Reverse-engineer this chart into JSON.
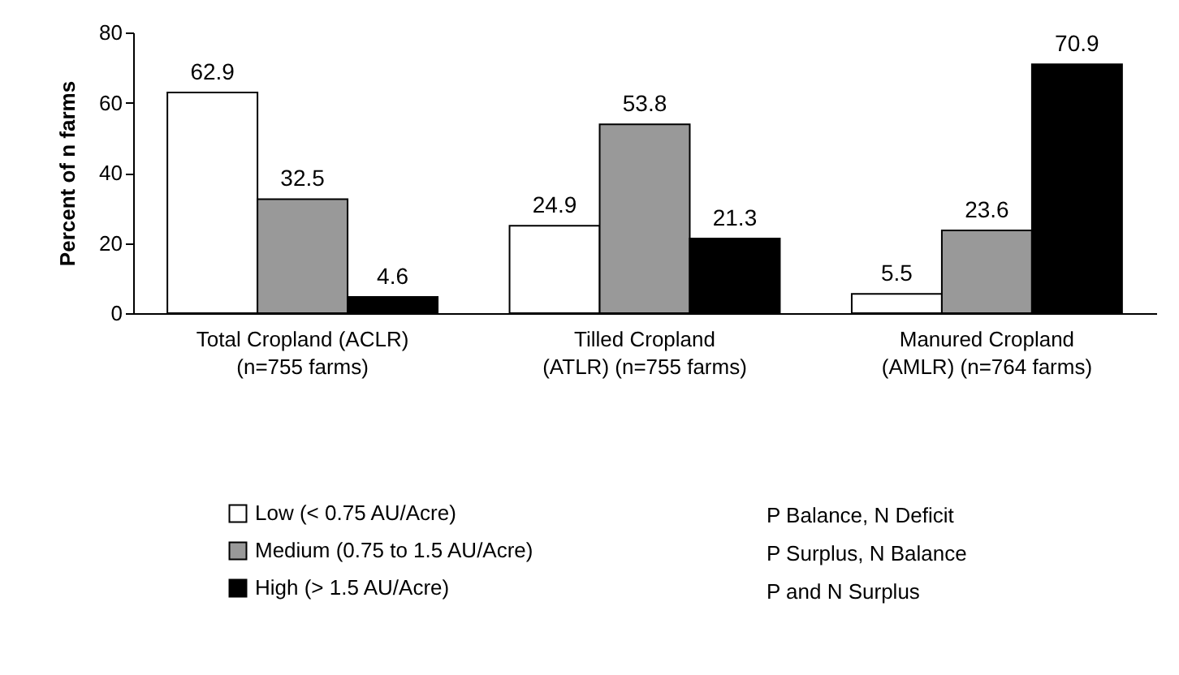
{
  "chart_data": {
    "type": "bar",
    "ylabel": "Percent of n farms",
    "categories": [
      "Total Cropland (ACLR) (n=755 farms)",
      "Tilled Cropland (ATLR) (n=755 farms)",
      "Manured Cropland (AMLR) (n=764 farms)"
    ],
    "series": [
      {
        "name": "Low (< 0.75 AU/Acre)",
        "color": "#ffffff",
        "values": [
          62.9,
          24.9,
          5.5
        ]
      },
      {
        "name": "Medium (0.75 to 1.5 AU/Acre)",
        "color": "#999999",
        "values": [
          32.5,
          53.8,
          23.6
        ]
      },
      {
        "name": "High (> 1.5 AU/Acre)",
        "color": "#000000",
        "values": [
          4.6,
          21.3,
          70.9
        ]
      }
    ],
    "ylim": [
      0,
      80
    ],
    "yticks": [
      0,
      20,
      40,
      60,
      80
    ],
    "grid": false,
    "legend": "bottom",
    "data_labels": true,
    "annotations": [
      "P Balance, N Deficit",
      "P Surplus, N Balance",
      "P and N Surplus"
    ]
  }
}
